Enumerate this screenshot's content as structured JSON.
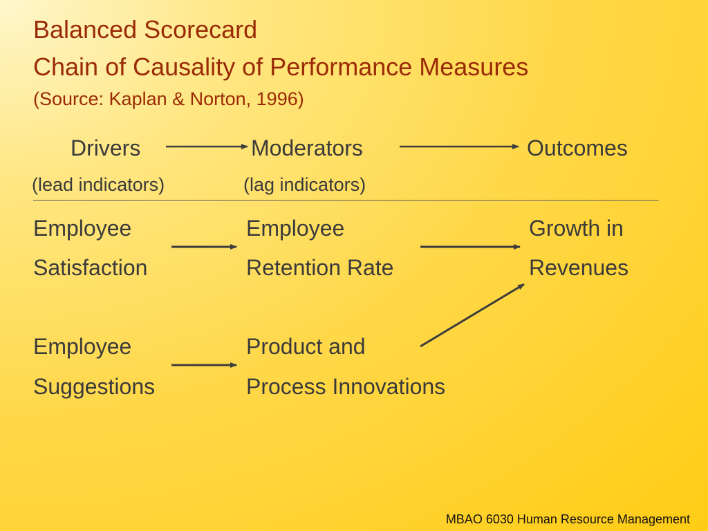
{
  "slide": {
    "title_line1": "Balanced Scorecard",
    "title_line2": "Chain of Causality of Performance Measures",
    "source": "(Source: Kaplan & Norton, 1996)"
  },
  "header": {
    "drivers": "Drivers",
    "moderators": "Moderators",
    "outcomes": "Outcomes",
    "drivers_note": "(lead indicators)",
    "moderators_note": "(lag indicators)"
  },
  "rows": [
    {
      "driver": [
        "Employee",
        "Satisfaction"
      ],
      "moderator": [
        "Employee",
        "Retention Rate"
      ],
      "outcome": [
        "Growth in",
        "Revenues"
      ]
    },
    {
      "driver": [
        "Employee",
        "Suggestions"
      ],
      "moderator": [
        "Product and",
        "Process Innovations"
      ]
    }
  ],
  "footer": "MBAO 6030 Human Resource Management",
  "colors": {
    "title": "#9a2a06",
    "text": "#3a3a3a",
    "arrow": "#3c3c3c",
    "background": "#ffd84a"
  }
}
